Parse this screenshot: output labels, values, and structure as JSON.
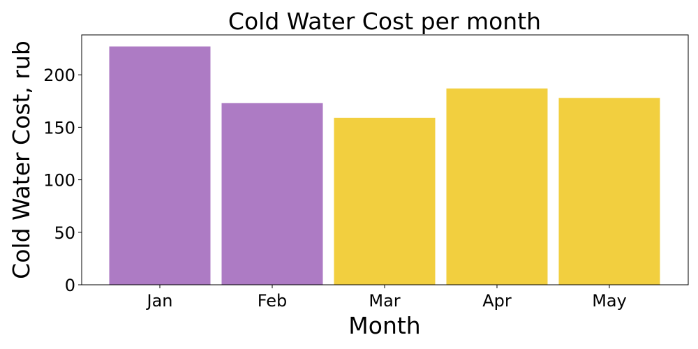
{
  "chart_data": {
    "type": "bar",
    "title": "Cold Water Cost per month",
    "xlabel": "Month",
    "ylabel": "Cold Water Cost, rub",
    "categories": [
      "Jan",
      "Feb",
      "Mar",
      "Apr",
      "May"
    ],
    "values": [
      227,
      173,
      159,
      187,
      178
    ],
    "bar_colors": [
      "#ad7bc4",
      "#ad7bc4",
      "#f2cf3f",
      "#f2cf3f",
      "#f2cf3f"
    ],
    "ylim": [
      0,
      238
    ],
    "yticks": [
      0,
      50,
      100,
      150,
      200
    ],
    "grid": false,
    "legend": "none"
  }
}
